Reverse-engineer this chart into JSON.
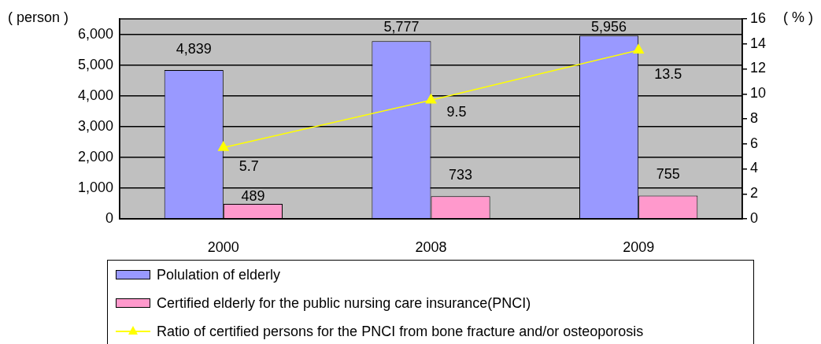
{
  "chart_data": {
    "type": "bar",
    "categories": [
      "2000",
      "2008",
      "2009"
    ],
    "series": [
      {
        "name": "Polulation of elderly",
        "color": "#9999ff",
        "values": [
          4839,
          5777,
          5956
        ],
        "value_labels": [
          "4,839",
          "5,777",
          "5,956"
        ]
      },
      {
        "name": "Certified elderly for the public nursing care insurance(PNCI)",
        "color": "#ff99cc",
        "values": [
          489,
          733,
          755
        ],
        "value_labels": [
          "489",
          "733",
          "755"
        ]
      },
      {
        "name": "Ratio of certified persons for the PNCI from bone fracture and/or osteoporosis",
        "type": "line",
        "axis": "y2",
        "color": "#ffff00",
        "values": [
          5.7,
          9.5,
          13.5
        ],
        "marker": "triangle",
        "value_labels": [
          "5.7",
          "9.5",
          "13.5"
        ]
      }
    ],
    "ylabel": "( person )",
    "y2label": "( % )",
    "ylim": [
      0,
      6500
    ],
    "yticks": [
      0,
      {
        "value": 1000,
        "label": "1,000"
      },
      {
        "value": 2000,
        "label": "2,000"
      },
      {
        "value": 3000,
        "label": "3,000"
      },
      {
        "value": 4000,
        "label": "4,000"
      },
      {
        "value": 5000,
        "label": "5,000"
      },
      {
        "value": 6000,
        "label": "6,000"
      }
    ],
    "y2lim": [
      0,
      16
    ],
    "y2ticks": [
      0,
      2,
      4,
      6,
      8,
      10,
      12,
      14,
      16
    ],
    "grid": "y",
    "legend": "bottom"
  }
}
